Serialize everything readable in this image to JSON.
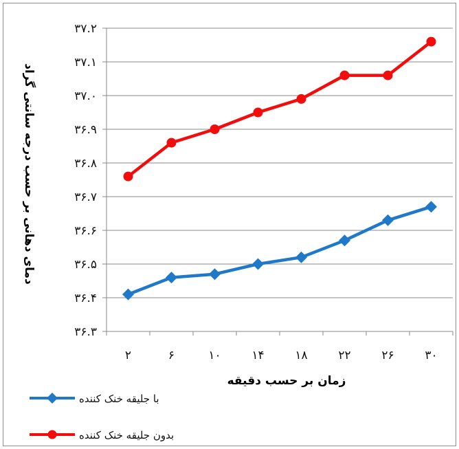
{
  "chart_data": {
    "type": "line",
    "categories": [
      "۲",
      "۶",
      "۱۰",
      "۱۴",
      "۱۸",
      "۲۲",
      "۲۶",
      "۳۰"
    ],
    "x": [
      2,
      6,
      10,
      14,
      18,
      22,
      26,
      30
    ],
    "xlabel": "زمان بر حسب دقیقه",
    "ylabel": "دمای دهانی بر حسب درجه سانتی گراد",
    "ylim": [
      36.3,
      37.2
    ],
    "yticks": [
      36.3,
      36.4,
      36.5,
      36.6,
      36.7,
      36.8,
      36.9,
      37.0,
      37.1,
      37.2
    ],
    "ytick_labels": [
      "۳۶.۳",
      "۳۶.۴",
      "۳۶.۵",
      "۳۶.۶",
      "۳۶.۷",
      "۳۶.۸",
      "۳۶.۹",
      "۳۷.۰",
      "۳۷.۱",
      "۳۷.۲"
    ],
    "grid": true,
    "legend_position": "bottom-left",
    "series": [
      {
        "name": "با جلیقه خنک کننده",
        "color": "#1f78c8",
        "marker": "diamond",
        "values": [
          36.41,
          36.46,
          36.47,
          36.5,
          36.52,
          36.57,
          36.63,
          36.67
        ]
      },
      {
        "name": "بدون جلیقه خنک کننده",
        "color": "#f20d0d",
        "marker": "circle",
        "values": [
          36.76,
          36.86,
          36.9,
          36.95,
          36.99,
          37.06,
          37.06,
          37.16
        ]
      }
    ]
  }
}
